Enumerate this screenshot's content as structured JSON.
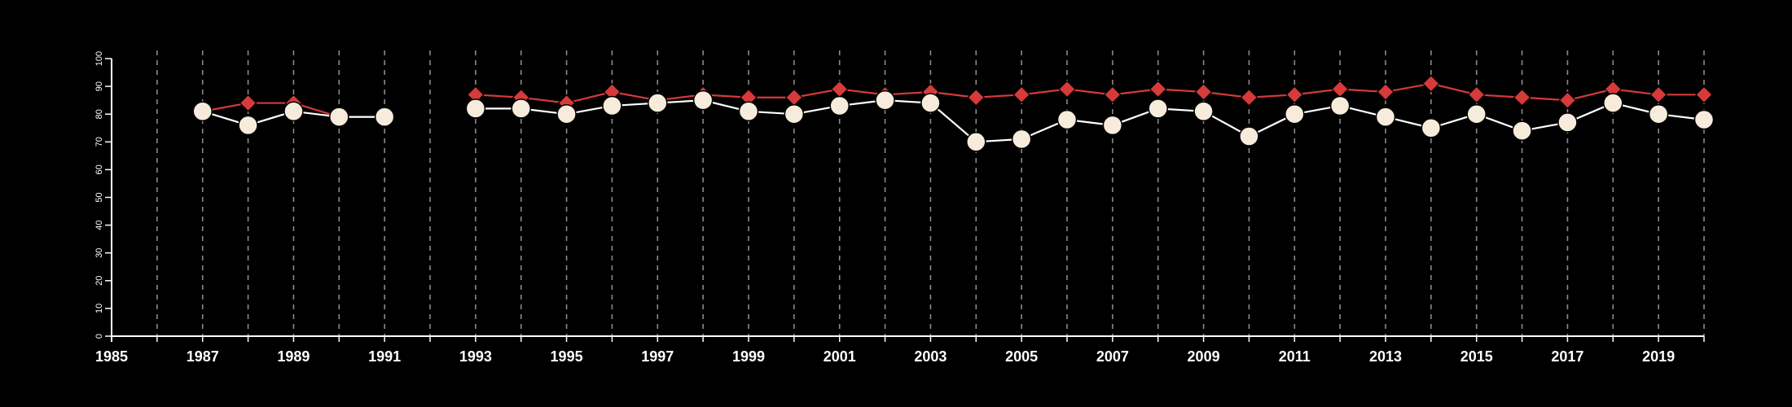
{
  "chart_data": {
    "type": "line",
    "title": "",
    "xlabel": "",
    "ylabel": "",
    "xlim": [
      1985,
      2020
    ],
    "ylim": [
      0,
      100
    ],
    "x_ticks": [
      1985,
      1987,
      1989,
      1991,
      1993,
      1995,
      1997,
      1999,
      2001,
      2003,
      2005,
      2007,
      2009,
      2011,
      2013,
      2015,
      2017,
      2019
    ],
    "y_ticks": [
      0,
      10,
      20,
      30,
      40,
      50,
      60,
      70,
      80,
      90,
      100
    ],
    "vertical_gridlines": "every year, dashed",
    "legend": "none",
    "series": [
      {
        "color": "#d63a3a",
        "marker": "diamond",
        "line_color": "#d63a3a",
        "points": [
          [
            1987,
            81
          ],
          [
            1988,
            84
          ],
          [
            1989,
            84
          ],
          [
            1990,
            79
          ],
          [
            1991,
            79
          ],
          [
            1993,
            87
          ],
          [
            1994,
            86
          ],
          [
            1995,
            84
          ],
          [
            1996,
            88
          ],
          [
            1997,
            85
          ],
          [
            1998,
            87
          ],
          [
            1999,
            86
          ],
          [
            2000,
            86
          ],
          [
            2001,
            89
          ],
          [
            2002,
            87
          ],
          [
            2003,
            88
          ],
          [
            2004,
            86
          ],
          [
            2005,
            87
          ],
          [
            2006,
            89
          ],
          [
            2007,
            87
          ],
          [
            2008,
            89
          ],
          [
            2009,
            88
          ],
          [
            2010,
            86
          ],
          [
            2011,
            87
          ],
          [
            2012,
            89
          ],
          [
            2013,
            88
          ],
          [
            2014,
            91
          ],
          [
            2015,
            87
          ],
          [
            2016,
            86
          ],
          [
            2017,
            85
          ],
          [
            2018,
            89
          ],
          [
            2019,
            87
          ],
          [
            2020,
            87
          ]
        ]
      },
      {
        "color": "#f7ecdc",
        "marker": "circle",
        "line_color": "#ffffff",
        "points": [
          [
            1987,
            81
          ],
          [
            1988,
            76
          ],
          [
            1989,
            81
          ],
          [
            1990,
            79
          ],
          [
            1991,
            79
          ],
          [
            1993,
            82
          ],
          [
            1994,
            82
          ],
          [
            1995,
            80
          ],
          [
            1996,
            83
          ],
          [
            1997,
            84
          ],
          [
            1998,
            85
          ],
          [
            1999,
            81
          ],
          [
            2000,
            80
          ],
          [
            2001,
            83
          ],
          [
            2002,
            85
          ],
          [
            2003,
            84
          ],
          [
            2004,
            70
          ],
          [
            2005,
            71
          ],
          [
            2006,
            78
          ],
          [
            2007,
            76
          ],
          [
            2008,
            82
          ],
          [
            2009,
            81
          ],
          [
            2010,
            72
          ],
          [
            2011,
            80
          ],
          [
            2012,
            83
          ],
          [
            2013,
            79
          ],
          [
            2014,
            75
          ],
          [
            2015,
            80
          ],
          [
            2016,
            74
          ],
          [
            2017,
            77
          ],
          [
            2018,
            84
          ],
          [
            2019,
            80
          ],
          [
            2020,
            78
          ]
        ]
      }
    ]
  }
}
